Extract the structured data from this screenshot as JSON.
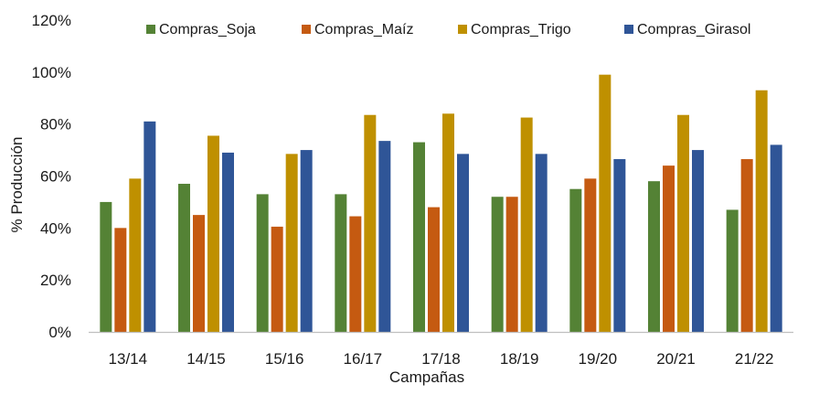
{
  "chart_data": {
    "type": "bar",
    "title": "",
    "xlabel": "Campañas",
    "ylabel": "% Producción",
    "ylim": [
      0,
      120
    ],
    "yticks": [
      0,
      20,
      40,
      60,
      80,
      100,
      120
    ],
    "ytick_labels": [
      "0%",
      "20%",
      "40%",
      "60%",
      "80%",
      "100%",
      "120%"
    ],
    "grid": false,
    "legend_position": "top",
    "categories": [
      "13/14",
      "14/15",
      "15/16",
      "16/17",
      "17/18",
      "18/19",
      "19/20",
      "20/21",
      "21/22"
    ],
    "series": [
      {
        "name": "Compras_Soja",
        "color": "#548235",
        "values": [
          50,
          57,
          53,
          53,
          73,
          52,
          55,
          58,
          47
        ]
      },
      {
        "name": "Compras_Maíz",
        "color": "#C55A11",
        "values": [
          40,
          45,
          40.5,
          44.5,
          48,
          52,
          59,
          64,
          66.5
        ]
      },
      {
        "name": "Compras_Trigo",
        "color": "#BF9000",
        "values": [
          59,
          75.5,
          68.5,
          83.5,
          84,
          82.5,
          99,
          83.5,
          93
        ]
      },
      {
        "name": "Compras_Girasol",
        "color": "#2F5597",
        "values": [
          81,
          69,
          70,
          73.5,
          68.5,
          68.5,
          66.5,
          70,
          72
        ]
      }
    ]
  }
}
